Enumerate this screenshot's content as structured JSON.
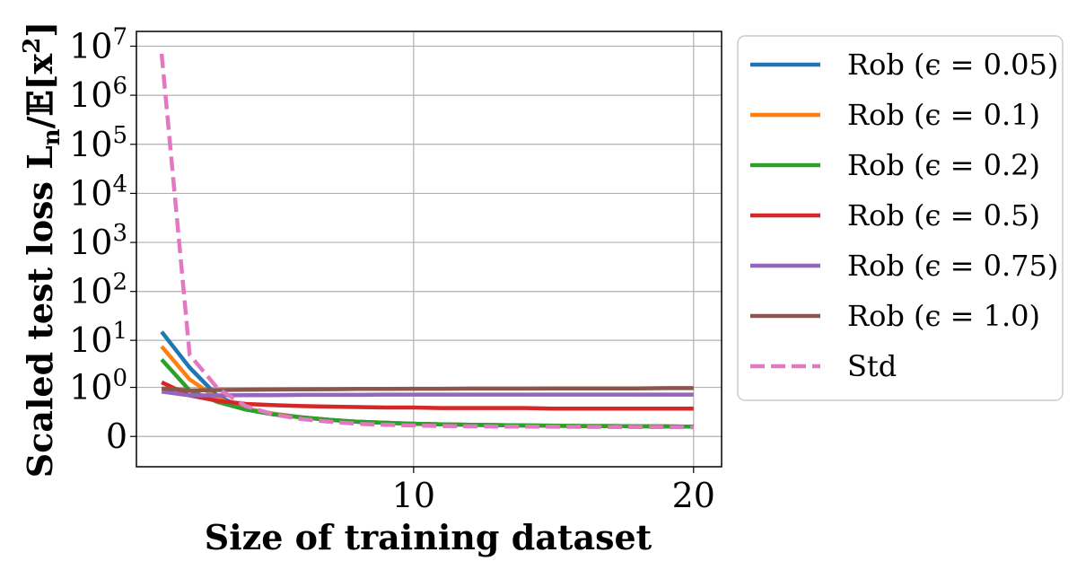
{
  "chart_data": {
    "type": "line",
    "xlabel": "Size of training dataset",
    "ylabel": "Scaled test loss L",
    "ylabel_sub": "n",
    "ylabel_tail": "/𝔼[x",
    "ylabel_sup": "2",
    "ylabel_close": "]",
    "y_scale": "symlog",
    "grid": true,
    "legend_position": "outside-right",
    "xlim": [
      0.1,
      21
    ],
    "ylim": [
      -0.35,
      20000000
    ],
    "x_ticks": [
      {
        "value": 10,
        "label": "10"
      },
      {
        "value": 20,
        "label": "20"
      }
    ],
    "y_ticks": [
      {
        "value": 0,
        "base": "0",
        "exp": ""
      },
      {
        "value": 1,
        "base": "10",
        "exp": "0"
      },
      {
        "value": 10,
        "base": "10",
        "exp": "1"
      },
      {
        "value": 100,
        "base": "10",
        "exp": "2"
      },
      {
        "value": 1000,
        "base": "10",
        "exp": "3"
      },
      {
        "value": 10000,
        "base": "10",
        "exp": "4"
      },
      {
        "value": 100000,
        "base": "10",
        "exp": "5"
      },
      {
        "value": 1000000,
        "base": "10",
        "exp": "6"
      },
      {
        "value": 10000000,
        "base": "10",
        "exp": "7"
      }
    ],
    "x": [
      1,
      2,
      3,
      4,
      5,
      6,
      7,
      8,
      9,
      10,
      11,
      12,
      13,
      14,
      15,
      16,
      17,
      18,
      19,
      20
    ],
    "series": [
      {
        "name": "Rob (ϵ = 0.05)",
        "color": "#1f77b4",
        "dash": false,
        "values": [
          15,
          2.7,
          0.62,
          0.3,
          0.21,
          0.16,
          0.13,
          0.11,
          0.1,
          0.09,
          0.085,
          0.08,
          0.078,
          0.075,
          0.073,
          0.07,
          0.07,
          0.068,
          0.067,
          0.065
        ]
      },
      {
        "name": "Rob (ϵ = 0.1)",
        "color": "#ff7f0e",
        "dash": false,
        "values": [
          7.5,
          1.5,
          0.55,
          0.3,
          0.21,
          0.16,
          0.13,
          0.11,
          0.1,
          0.09,
          0.085,
          0.08,
          0.078,
          0.075,
          0.073,
          0.07,
          0.07,
          0.068,
          0.067,
          0.065
        ]
      },
      {
        "name": "Rob (ϵ = 0.2)",
        "color": "#2ca02c",
        "dash": false,
        "values": [
          4.0,
          0.85,
          0.45,
          0.28,
          0.2,
          0.16,
          0.13,
          0.11,
          0.1,
          0.09,
          0.085,
          0.08,
          0.078,
          0.075,
          0.073,
          0.07,
          0.07,
          0.068,
          0.067,
          0.065
        ]
      },
      {
        "name": "Rob (ϵ = 0.5)",
        "color": "#d62728",
        "dash": false,
        "values": [
          1.3,
          0.65,
          0.48,
          0.4,
          0.37,
          0.35,
          0.34,
          0.33,
          0.32,
          0.32,
          0.31,
          0.31,
          0.31,
          0.31,
          0.3,
          0.3,
          0.3,
          0.3,
          0.3,
          0.3
        ]
      },
      {
        "name": "Rob (ϵ = 0.75)",
        "color": "#9467bd",
        "dash": false,
        "values": [
          0.8,
          0.65,
          0.65,
          0.66,
          0.66,
          0.67,
          0.67,
          0.67,
          0.68,
          0.68,
          0.68,
          0.68,
          0.68,
          0.68,
          0.68,
          0.68,
          0.68,
          0.68,
          0.68,
          0.68
        ]
      },
      {
        "name": "Rob (ϵ = 1.0)",
        "color": "#8c564b",
        "dash": false,
        "values": [
          0.95,
          0.85,
          0.87,
          0.88,
          0.89,
          0.9,
          0.91,
          0.92,
          0.92,
          0.93,
          0.93,
          0.94,
          0.94,
          0.94,
          0.95,
          0.95,
          0.95,
          0.95,
          0.96,
          0.96
        ]
      },
      {
        "name": "Std",
        "color": "#e377c2",
        "dash": true,
        "values": [
          7000000,
          5.0,
          0.95,
          0.35,
          0.2,
          0.14,
          0.11,
          0.09,
          0.08,
          0.075,
          0.07,
          0.068,
          0.066,
          0.065,
          0.064,
          0.063,
          0.062,
          0.062,
          0.061,
          0.06
        ]
      }
    ]
  }
}
